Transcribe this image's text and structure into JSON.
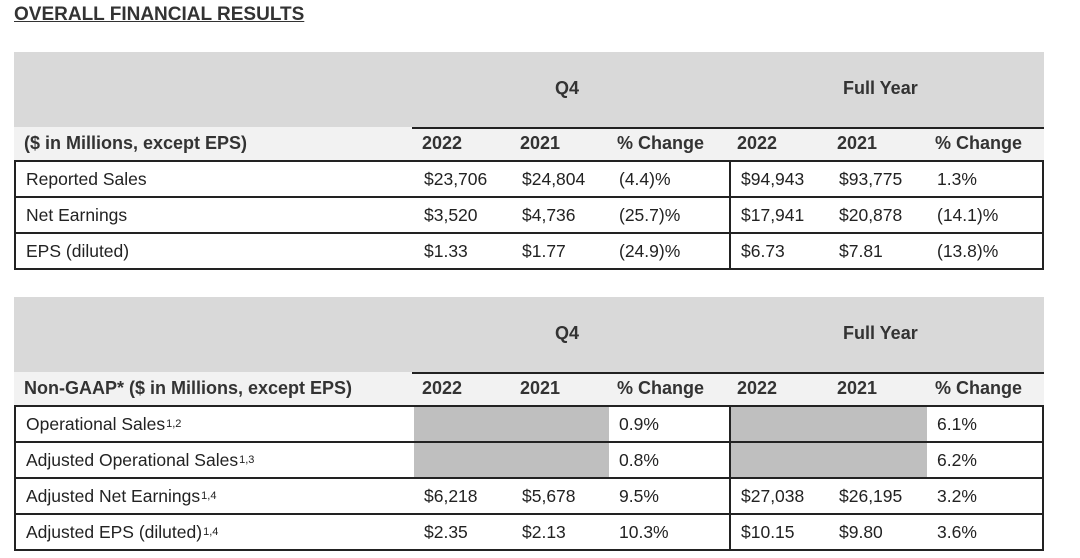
{
  "title": "OVERALL FINANCIAL RESULTS",
  "tables": [
    {
      "q4": "Q4",
      "fy": "Full Year",
      "label_header": "($ in Millions, except EPS)",
      "cols": [
        "2022",
        "2021",
        "% Change",
        "2022",
        "2021",
        "% Change"
      ],
      "rows": [
        {
          "label": "Reported Sales",
          "sup": "",
          "values": [
            "$23,706",
            "$24,804",
            "(4.4)%",
            "$94,943",
            "$93,775",
            "1.3%"
          ]
        },
        {
          "label": "Net Earnings",
          "sup": "",
          "values": [
            "$3,520",
            "$4,736",
            "(25.7)%",
            "$17,941",
            "$20,878",
            "(14.1)%"
          ]
        },
        {
          "label": "EPS (diluted)",
          "sup": "",
          "values": [
            "$1.33",
            "$1.77",
            "(24.9)%",
            "$6.73",
            "$7.81",
            "(13.8)%"
          ]
        }
      ]
    },
    {
      "q4": "Q4",
      "fy": "Full Year",
      "label_header": "Non-GAAP* ($ in Millions, except EPS)",
      "cols": [
        "2022",
        "2021",
        "% Change",
        "2022",
        "2021",
        "% Change"
      ],
      "rows": [
        {
          "label": "Operational Sales",
          "sup": "1,2",
          "values": [
            "",
            "",
            "0.9%",
            "",
            "",
            "6.1%"
          ]
        },
        {
          "label": "Adjusted Operational Sales",
          "sup": "1,3",
          "values": [
            "",
            "",
            "0.8%",
            "",
            "",
            "6.2%"
          ]
        },
        {
          "label": "Adjusted Net Earnings",
          "sup": "1,4",
          "values": [
            "$6,218",
            "$5,678",
            "9.5%",
            "$27,038",
            "$26,195",
            "3.2%"
          ]
        },
        {
          "label": "Adjusted EPS (diluted)",
          "sup": "1,4",
          "values": [
            "$2.35",
            "$2.13",
            "10.3%",
            "$10.15",
            "$9.80",
            "3.6%"
          ]
        }
      ]
    }
  ]
}
